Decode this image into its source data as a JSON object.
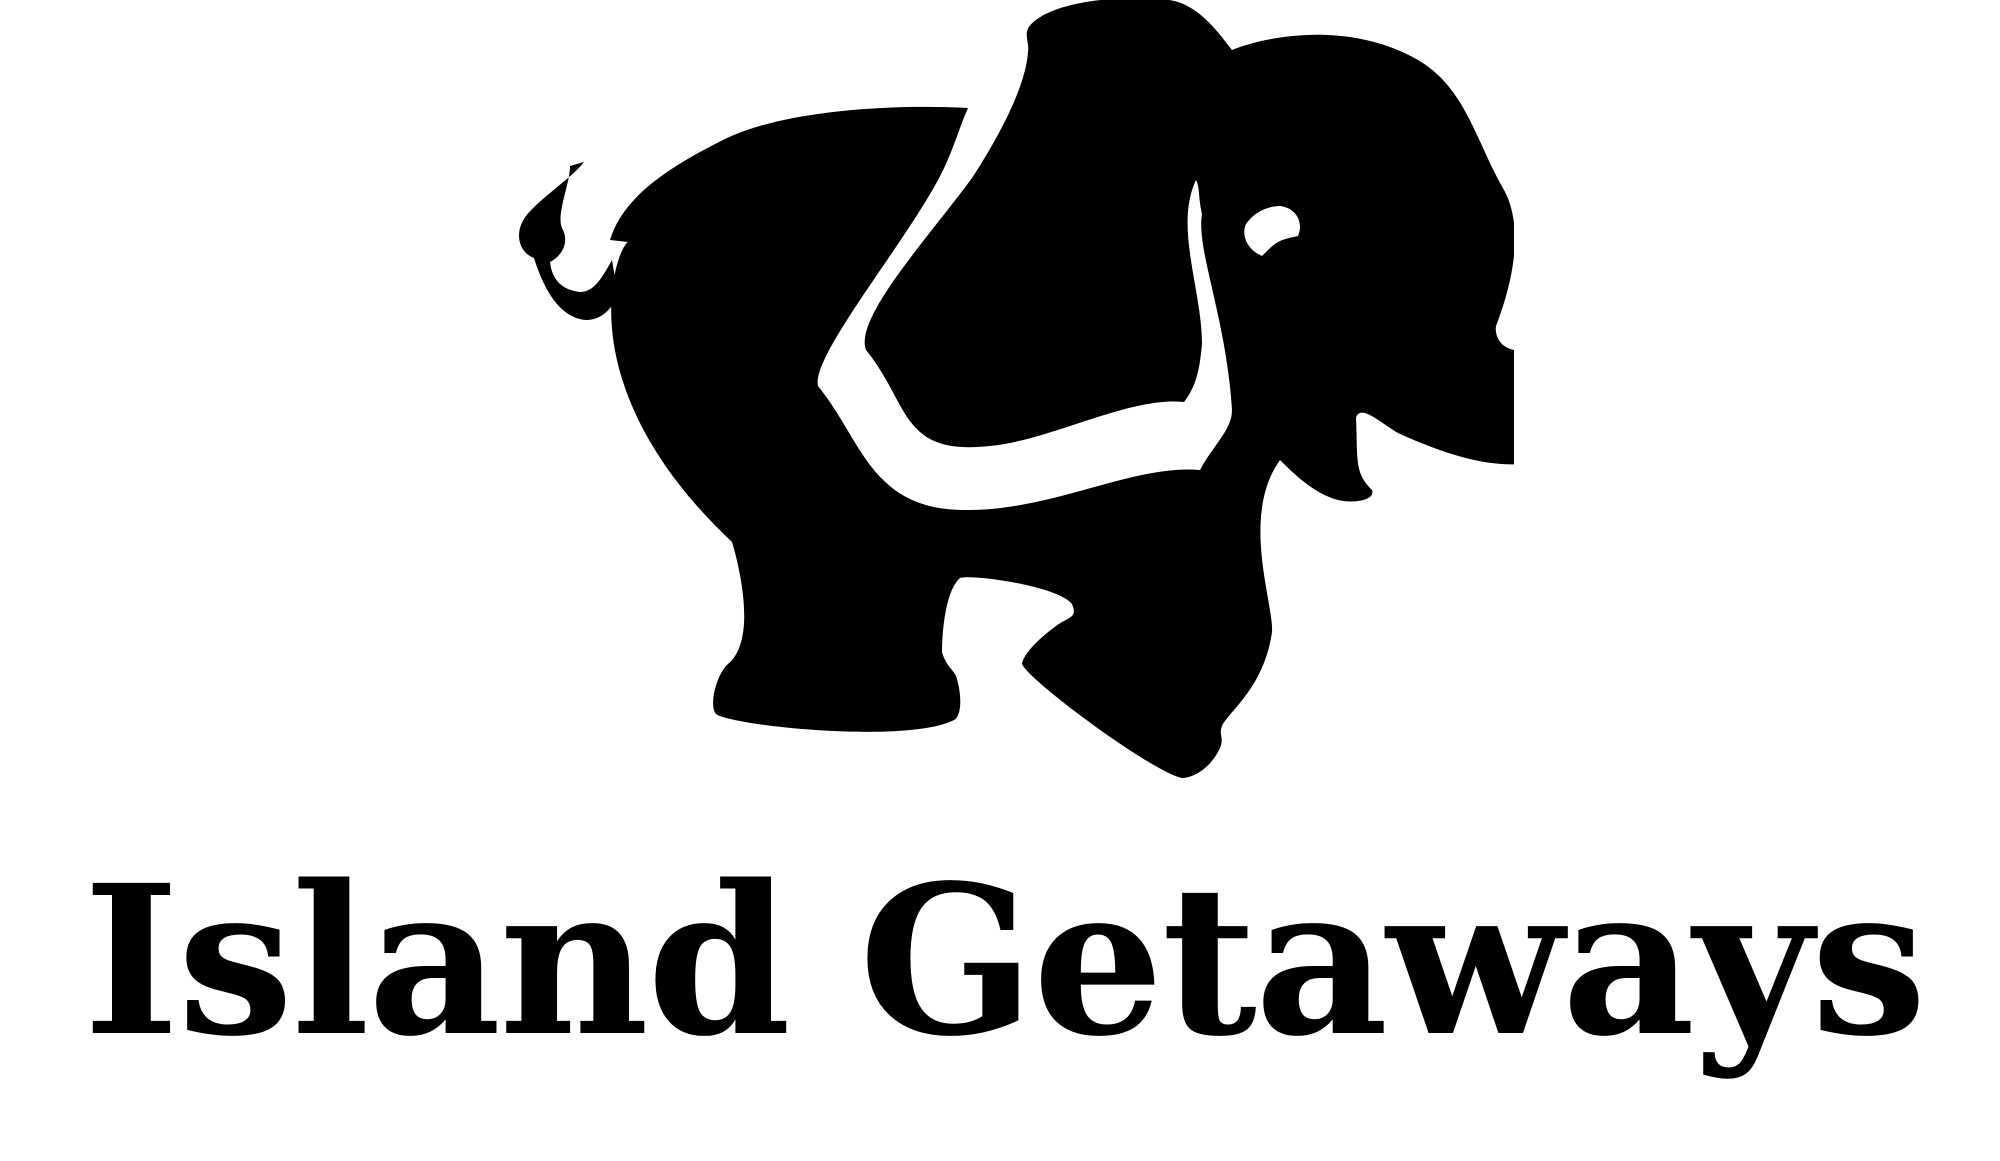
{
  "logo": {
    "icon": "elephant-icon",
    "wordmark": "Island Getaways",
    "colors": {
      "ink": "#000000",
      "background": "#ffffff"
    }
  }
}
